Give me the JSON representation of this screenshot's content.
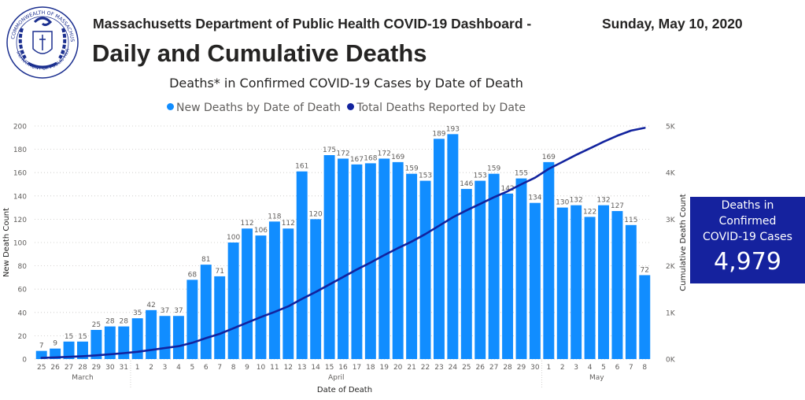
{
  "header": {
    "line1": "Massachusetts Department of Public Health COVID-19 Dashboard -",
    "date": "Sunday, May 10, 2020",
    "title": "Daily and Cumulative Deaths"
  },
  "logo": {
    "text": "COMMONWEALTH OF MASSACHUSETTS · DEPARTMENT OF PUBLIC HEALTH"
  },
  "kpi": {
    "label_lines": [
      "Deaths in",
      "Confirmed",
      "COVID-19 Cases"
    ],
    "value": "4,979",
    "bg_color": "#15229e"
  },
  "colors": {
    "bar": "#118dff",
    "line": "#12239e"
  },
  "chart_data": {
    "type": "bar+line",
    "title": "Deaths* in Confirmed COVID-19 Cases by Date of Death",
    "xlabel": "Date of Death",
    "ylabel": "New Death Count",
    "y2label": "Cumulative Death Count",
    "ylim": [
      0,
      200
    ],
    "y2lim": [
      0,
      5000
    ],
    "yticks": [
      "0",
      "20",
      "40",
      "60",
      "80",
      "100",
      "120",
      "140",
      "160",
      "180",
      "200"
    ],
    "y2ticks": [
      "0K",
      "1K",
      "2K",
      "3K",
      "4K",
      "5K"
    ],
    "grid": true,
    "legend_position": "top-center",
    "legend": [
      "New Deaths by Date of Death",
      "Total Deaths Reported by Date"
    ],
    "months": [
      {
        "label": "March",
        "start": 0,
        "end": 6
      },
      {
        "label": "April",
        "start": 7,
        "end": 36
      },
      {
        "label": "May",
        "start": 37,
        "end": 44
      }
    ],
    "categories": [
      "25",
      "26",
      "27",
      "28",
      "29",
      "30",
      "31",
      "1",
      "2",
      "3",
      "4",
      "5",
      "6",
      "7",
      "8",
      "9",
      "10",
      "11",
      "12",
      "13",
      "14",
      "15",
      "16",
      "17",
      "18",
      "19",
      "20",
      "21",
      "22",
      "23",
      "24",
      "25",
      "26",
      "27",
      "28",
      "29",
      "30",
      "1",
      "2",
      "3",
      "4",
      "5",
      "6",
      "7",
      "8"
    ],
    "series": [
      {
        "name": "New Deaths by Date of Death",
        "type": "bar",
        "axis": "left",
        "values": [
          7,
          9,
          15,
          15,
          25,
          28,
          28,
          35,
          42,
          37,
          37,
          68,
          81,
          71,
          100,
          112,
          106,
          118,
          112,
          161,
          120,
          175,
          172,
          167,
          168,
          172,
          169,
          159,
          153,
          189,
          193,
          146,
          153,
          159,
          142,
          155,
          134,
          169,
          130,
          132,
          122,
          132,
          127,
          115,
          72
        ]
      },
      {
        "name": "Total Deaths Reported by Date",
        "type": "line",
        "axis": "right",
        "values": [
          25,
          35,
          48,
          60,
          79,
          103,
          127,
          156,
          196,
          236,
          276,
          350,
          450,
          540,
          660,
          780,
          900,
          1010,
          1130,
          1290,
          1440,
          1600,
          1760,
          1920,
          2070,
          2230,
          2380,
          2520,
          2680,
          2860,
          3040,
          3190,
          3330,
          3470,
          3600,
          3750,
          3890,
          4080,
          4230,
          4380,
          4520,
          4660,
          4790,
          4900,
          4960
        ]
      }
    ]
  }
}
